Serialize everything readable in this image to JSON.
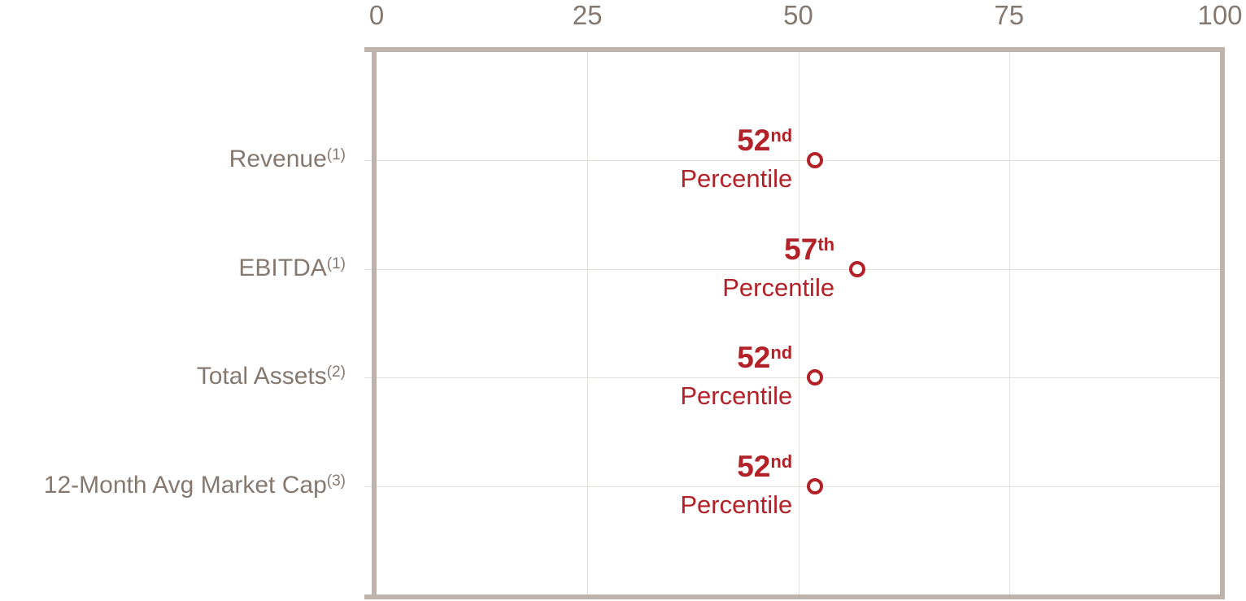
{
  "chart_data": {
    "type": "scatter",
    "title": "",
    "x_axis": {
      "position": "top",
      "range": [
        0,
        100
      ],
      "ticks": [
        "0",
        "25",
        "50",
        "75",
        "100"
      ],
      "tick_values": [
        0,
        25,
        50,
        75,
        100
      ]
    },
    "categories": [
      {
        "label": "Revenue",
        "footnote": "(1)"
      },
      {
        "label": "EBITDA",
        "footnote": "(1)"
      },
      {
        "label": "Total Assets",
        "footnote": "(2)"
      },
      {
        "label": "12-Month Avg Market Cap",
        "footnote": "(3)"
      }
    ],
    "points": [
      {
        "value": 52,
        "label_number": "52",
        "label_ordinal": "nd",
        "label_caption": "Percentile"
      },
      {
        "value": 57,
        "label_number": "57",
        "label_ordinal": "th",
        "label_caption": "Percentile"
      },
      {
        "value": 52,
        "label_number": "52",
        "label_ordinal": "nd",
        "label_caption": "Percentile"
      },
      {
        "value": 52,
        "label_number": "52",
        "label_ordinal": "nd",
        "label_caption": "Percentile"
      }
    ],
    "row_centers_pct": [
      20,
      40,
      60,
      80
    ],
    "gridlines": {
      "vertical_at": [
        25,
        50,
        75
      ],
      "horizontal_per_category": true
    },
    "marker": {
      "shape": "open-circle"
    },
    "legend": null,
    "colors": {
      "accent_red": "#b22127",
      "axis_border": "#bfb4ab",
      "gridline": "#e4e1dd",
      "text_gray": "#85796f"
    }
  }
}
